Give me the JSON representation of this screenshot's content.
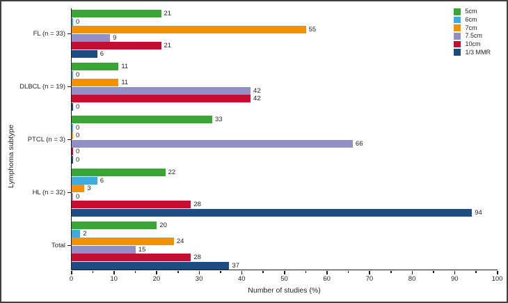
{
  "chart_data": {
    "type": "bar",
    "orientation": "horizontal",
    "xlabel": "Number of studies (%)",
    "ylabel": "Lymphoma subtype",
    "xlim": [
      0,
      100
    ],
    "xticks": [
      0,
      10,
      20,
      30,
      40,
      50,
      60,
      70,
      80,
      90,
      100
    ],
    "x_minor_tick_step": 5,
    "grid": false,
    "legend_position": "top-right",
    "categories": [
      "FL (n = 33)",
      "DLBCL (n = 19)",
      "PTCL (n = 3)",
      "HL (n = 32)",
      "Total"
    ],
    "series": [
      {
        "name": "5cm",
        "color": "#3aa437",
        "values": [
          21,
          11,
          33,
          22,
          20
        ]
      },
      {
        "name": "6cm",
        "color": "#3faade",
        "values": [
          0,
          0,
          0,
          6,
          2
        ]
      },
      {
        "name": "7cm",
        "color": "#f39200",
        "values": [
          55,
          11,
          0,
          3,
          24
        ]
      },
      {
        "name": "7.5cm",
        "color": "#918fc6",
        "values": [
          9,
          42,
          66,
          0,
          15
        ]
      },
      {
        "name": "10cm",
        "color": "#c60c30",
        "values": [
          21,
          42,
          0,
          28,
          28
        ]
      },
      {
        "name": "1/3 MMR",
        "color": "#1d4d80",
        "values": [
          6,
          0,
          0,
          94,
          37
        ]
      }
    ],
    "colors": {
      "axis": "#1a1a1a",
      "text": "#231f20",
      "figure_border": "#3f3f3f",
      "background": "#ffffff"
    }
  }
}
